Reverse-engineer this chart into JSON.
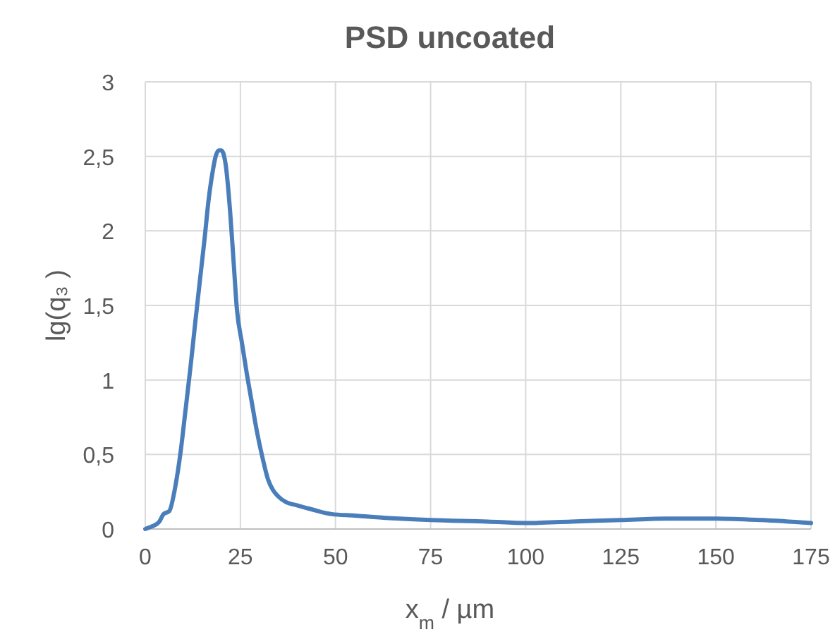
{
  "chart_data": {
    "type": "line",
    "title": "PSD uncoated",
    "xlabel": "x$_{m}$ / µm",
    "ylabel": "lg(q₃ )",
    "x": [
      0,
      1,
      2,
      3.7,
      4.8,
      6.3,
      8,
      9.3,
      10.5,
      11.9,
      13.2,
      14.5,
      15.6,
      16.7,
      17.6,
      18.5,
      19.3,
      20,
      21.1,
      22.3,
      23.2,
      24.1,
      25.4,
      26.7,
      28,
      29.3,
      30.8,
      32.3,
      33.6,
      34.9,
      37,
      39.7,
      44,
      49,
      55,
      60,
      75,
      90,
      100,
      112,
      125,
      137,
      150,
      162,
      175
    ],
    "series": [
      {
        "color": "#4a7ebb",
        "values": [
          0,
          0.01,
          0.02,
          0.05,
          0.1,
          0.12,
          0.3,
          0.52,
          0.78,
          1.09,
          1.4,
          1.7,
          1.95,
          2.22,
          2.38,
          2.5,
          2.54,
          2.54,
          2.45,
          2.13,
          1.8,
          1.47,
          1.25,
          1.04,
          0.85,
          0.66,
          0.48,
          0.33,
          0.26,
          0.22,
          0.18,
          0.16,
          0.13,
          0.1,
          0.09,
          0.08,
          0.06,
          0.05,
          0.04,
          0.05,
          0.06,
          0.07,
          0.07,
          0.06,
          0.04
        ]
      }
    ],
    "xlim": [
      0,
      175
    ],
    "xticks": [
      0,
      25,
      50,
      75,
      100,
      125,
      150,
      175
    ],
    "ylim": [
      0,
      3
    ],
    "yticks": [
      0,
      {
        "value": 0.5,
        "label": "0,5"
      },
      1,
      {
        "value": 1.5,
        "label": "1,5"
      },
      2,
      {
        "value": 2.5,
        "label": "2,5"
      },
      3
    ],
    "grid": true,
    "line_style": "solid",
    "marker": "none"
  }
}
